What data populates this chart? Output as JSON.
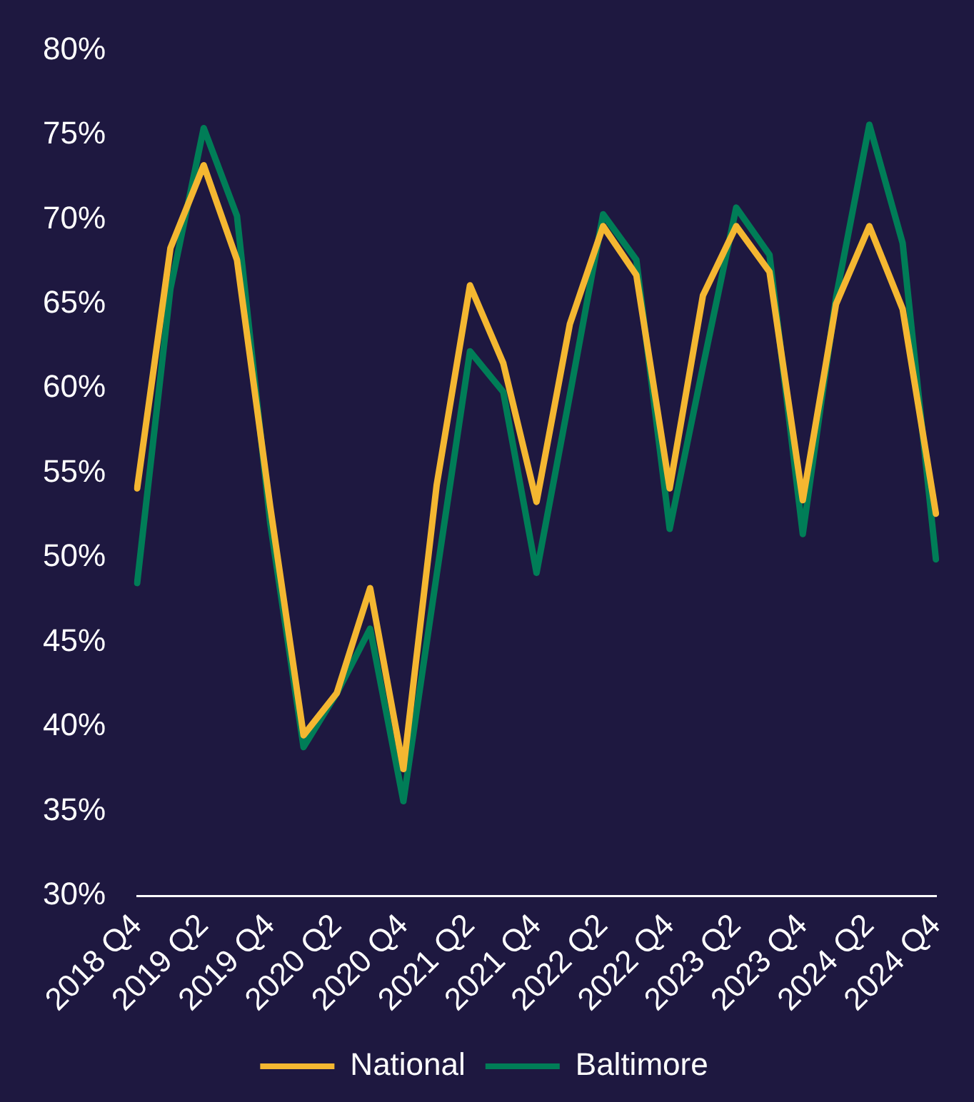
{
  "chart_data": {
    "type": "line",
    "categories": [
      "2018 Q4",
      null,
      "2019 Q2",
      null,
      "2019 Q4",
      null,
      "2020 Q2",
      null,
      "2020 Q4",
      null,
      "2021 Q2",
      null,
      "2021 Q4",
      null,
      "2022 Q2",
      null,
      "2022 Q4",
      null,
      "2023 Q2",
      null,
      "2023 Q4",
      null,
      "2024 Q2",
      null,
      "2024 Q4"
    ],
    "series": [
      {
        "name": "National",
        "color": "#f4b731",
        "values": [
          54.1,
          68.3,
          73.2,
          67.6,
          53,
          39.5,
          42,
          48.2,
          37.5,
          54.3,
          66.1,
          61.5,
          53.3,
          63.8,
          69.6,
          66.7,
          54.1,
          65.5,
          69.6,
          66.9,
          53.4,
          65,
          69.6,
          64.7,
          52.6
        ]
      },
      {
        "name": "Baltimore",
        "color": "#007d57",
        "values": [
          48.5,
          65.9,
          75.4,
          70.2,
          52,
          38.8,
          42,
          45.8,
          35.6,
          49,
          62.2,
          59.8,
          49.1,
          59.6,
          70.3,
          67.6,
          51.7,
          61.3,
          70.7,
          67.9,
          51.4,
          65.4,
          75.6,
          68.6,
          49.9
        ]
      }
    ],
    "ylim": [
      30,
      80
    ],
    "yticks": [
      {
        "value": 30,
        "label": "30%"
      },
      {
        "value": 35,
        "label": "35%"
      },
      {
        "value": 40,
        "label": "40%"
      },
      {
        "value": 45,
        "label": "45%"
      },
      {
        "value": 50,
        "label": "50%"
      },
      {
        "value": 55,
        "label": "55%"
      },
      {
        "value": 60,
        "label": "60%"
      },
      {
        "value": 65,
        "label": "65%"
      },
      {
        "value": 70,
        "label": "70%"
      },
      {
        "value": 75,
        "label": "75%"
      },
      {
        "value": 80,
        "label": "80%"
      }
    ],
    "grid": false,
    "legend": "bottom",
    "marker": "none",
    "line_style": "solid"
  }
}
